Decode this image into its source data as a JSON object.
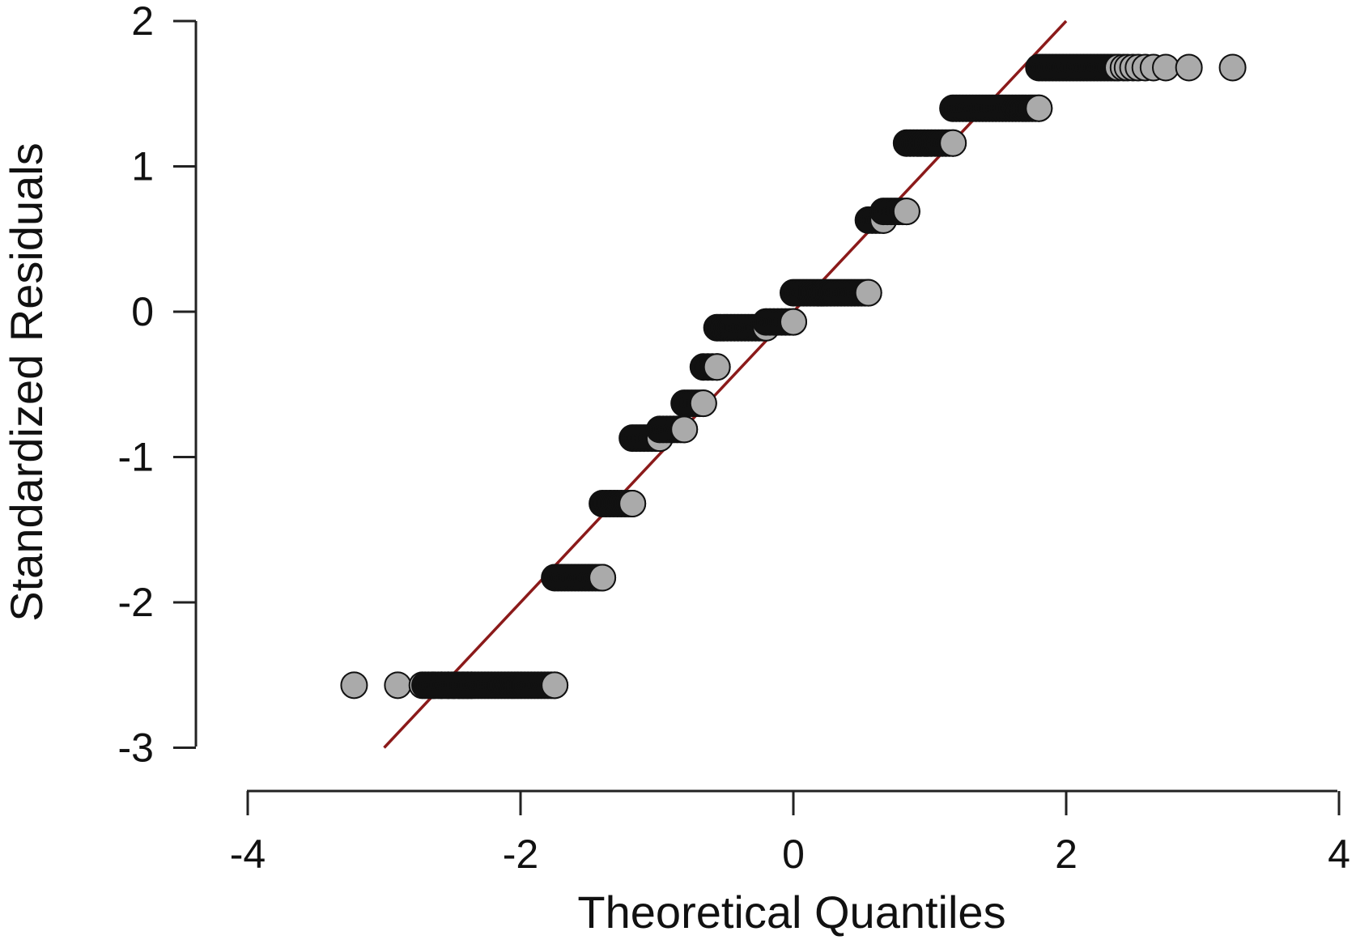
{
  "chart_data": {
    "type": "scatter",
    "title": "",
    "xlabel": "Theoretical Quantiles",
    "ylabel": "Standardized Residuals",
    "xlim": [
      -4,
      4
    ],
    "ylim": [
      -3,
      2
    ],
    "xticks": [
      -4,
      -2,
      0,
      2,
      4
    ],
    "xtick_labels": [
      "-4",
      "-2",
      "0",
      "2",
      "4"
    ],
    "yticks": [
      -3,
      -2,
      -1,
      0,
      1,
      2
    ],
    "ytick_labels": [
      "-3",
      "-2",
      "-1",
      "0",
      "1",
      "2"
    ],
    "grid": false,
    "reference_line": {
      "x": [
        -3.0,
        2.0
      ],
      "y": [
        -3.0,
        2.0
      ]
    },
    "clusters": [
      {
        "y": -2.57,
        "x_start": -2.7,
        "x_end": -1.75,
        "leading_x": [
          -3.22,
          -2.9,
          -2.72,
          -2.64,
          -2.58,
          -2.53,
          -2.49,
          -2.45,
          -2.42,
          -2.39,
          -2.36
        ]
      },
      {
        "y": -1.83,
        "x_start": -1.75,
        "x_end": -1.4
      },
      {
        "y": -1.32,
        "x_start": -1.4,
        "x_end": -1.18
      },
      {
        "y": -0.87,
        "x_start": -1.18,
        "x_end": -0.98
      },
      {
        "y": -0.81,
        "x_start": -0.98,
        "x_end": -0.8
      },
      {
        "y": -0.63,
        "x_start": -0.8,
        "x_end": -0.66
      },
      {
        "y": -0.38,
        "x_start": -0.66,
        "x_end": -0.56
      },
      {
        "y": -0.11,
        "x_start": -0.56,
        "x_end": -0.2
      },
      {
        "y": -0.07,
        "x_start": -0.2,
        "x_end": 0.0
      },
      {
        "y": 0.13,
        "x_start": 0.0,
        "x_end": 0.55
      },
      {
        "y": 0.63,
        "x_start": 0.55,
        "x_end": 0.66
      },
      {
        "y": 0.69,
        "x_start": 0.66,
        "x_end": 0.83
      },
      {
        "y": 1.16,
        "x_start": 0.83,
        "x_end": 1.17
      },
      {
        "y": 1.4,
        "x_start": 1.17,
        "x_end": 1.8
      },
      {
        "y": 1.68,
        "x_start": 1.8,
        "x_end": 2.38,
        "trailing_x": [
          2.42,
          2.45,
          2.49,
          2.53,
          2.58,
          2.64,
          2.73,
          2.9,
          3.22
        ]
      }
    ],
    "colors": {
      "point_fill_light": "#aaaaaa",
      "point_fill_dark": "#111111",
      "point_stroke": "#111111",
      "reference_line": "#8b1a1a",
      "axis": "#222222"
    }
  }
}
